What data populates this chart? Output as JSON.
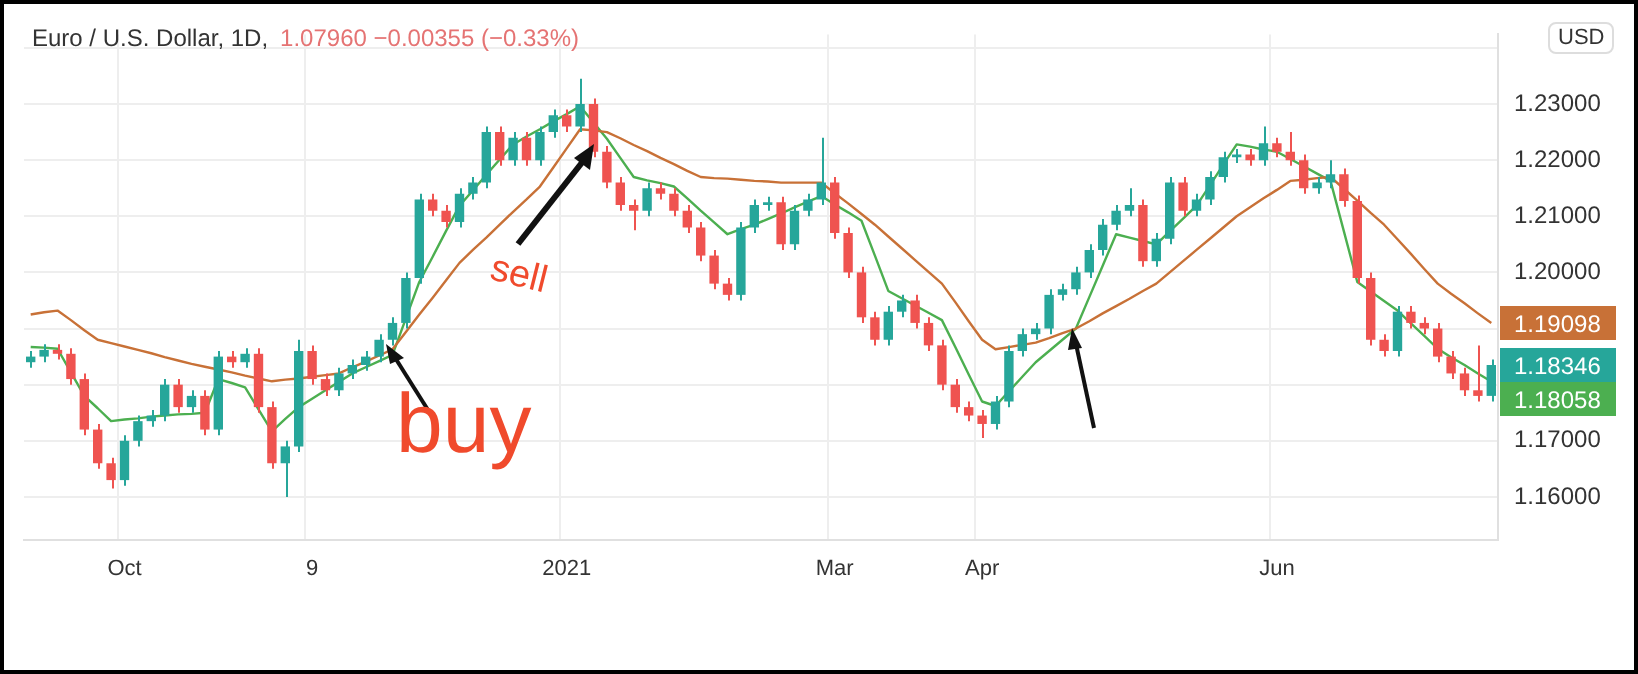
{
  "chart_data": {
    "type": "candlestick",
    "title": "Euro / U.S. Dollar, 1D,",
    "subtitle": "1.07960  −0.00355 (−0.33%)",
    "categories": [
      null,
      null,
      null,
      null,
      null,
      null,
      null,
      "Oct",
      null,
      null,
      null,
      null,
      null,
      null,
      null,
      null,
      null,
      null,
      null,
      null,
      null,
      "9",
      null,
      null,
      null,
      null,
      null,
      null,
      null,
      null,
      null,
      null,
      null,
      null,
      null,
      null,
      null,
      null,
      null,
      null,
      "2021",
      null,
      null,
      null,
      null,
      null,
      null,
      null,
      null,
      null,
      null,
      null,
      null,
      null,
      null,
      null,
      null,
      null,
      null,
      null,
      "Mar",
      null,
      null,
      null,
      null,
      null,
      null,
      null,
      null,
      null,
      null,
      "Apr",
      null,
      null,
      null,
      null,
      null,
      null,
      null,
      null,
      null,
      null,
      null,
      null,
      null,
      null,
      null,
      null,
      null,
      null,
      null,
      null,
      null,
      "Jun",
      null,
      null,
      null,
      null,
      null,
      null,
      null,
      null,
      null,
      null,
      null,
      null,
      null,
      null,
      null,
      null
    ],
    "ylim": [
      1.1524,
      1.2424
    ],
    "yticks": [
      {
        "value": 1.16,
        "label": "1.16000"
      },
      {
        "value": 1.17,
        "label": "1.17000"
      },
      {
        "value": 1.18,
        "label": null
      },
      {
        "value": 1.19,
        "label": null
      },
      {
        "value": 1.2,
        "label": "1.20000"
      },
      {
        "value": 1.21,
        "label": "1.21000"
      },
      {
        "value": 1.22,
        "label": "1.22000"
      },
      {
        "value": 1.23,
        "label": "1.23000"
      },
      {
        "value": 1.24,
        "label": null
      }
    ],
    "grid": true,
    "annotations": [
      "buy",
      "sell",
      "USD"
    ],
    "series": [
      {
        "ohlc": [
          [
            1.184,
            1.186,
            1.183,
            1.185
          ],
          [
            1.185,
            1.1872,
            1.184,
            1.1862
          ],
          [
            1.1862,
            1.1872,
            1.1845,
            1.1855
          ],
          [
            1.1855,
            1.1865,
            1.18,
            1.181
          ],
          [
            1.181,
            1.182,
            1.171,
            1.172
          ],
          [
            1.172,
            1.173,
            1.165,
            1.166
          ],
          [
            1.166,
            1.167,
            1.1615,
            1.163
          ],
          [
            1.163,
            1.171,
            1.162,
            1.17
          ],
          [
            1.17,
            1.1745,
            1.169,
            1.1735
          ],
          [
            1.1735,
            1.1755,
            1.1725,
            1.1745
          ],
          [
            1.1745,
            1.181,
            1.1735,
            1.18
          ],
          [
            1.18,
            1.181,
            1.175,
            1.176
          ],
          [
            1.176,
            1.179,
            1.175,
            1.178
          ],
          [
            1.178,
            1.179,
            1.171,
            1.172
          ],
          [
            1.172,
            1.186,
            1.171,
            1.185
          ],
          [
            1.185,
            1.186,
            1.183,
            1.184
          ],
          [
            1.184,
            1.1865,
            1.183,
            1.1855
          ],
          [
            1.1855,
            1.1865,
            1.175,
            1.176
          ],
          [
            1.176,
            1.177,
            1.165,
            1.166
          ],
          [
            1.166,
            1.17,
            1.16,
            1.169
          ],
          [
            1.169,
            1.188,
            1.168,
            1.186
          ],
          [
            1.186,
            1.187,
            1.18,
            1.181
          ],
          [
            1.181,
            1.182,
            1.178,
            1.179
          ],
          [
            1.179,
            1.183,
            1.178,
            1.182
          ],
          [
            1.182,
            1.1845,
            1.181,
            1.1835
          ],
          [
            1.1835,
            1.186,
            1.1825,
            1.185
          ],
          [
            1.185,
            1.189,
            1.184,
            1.188
          ],
          [
            1.188,
            1.192,
            1.187,
            1.191
          ],
          [
            1.191,
            1.2,
            1.19,
            1.199
          ],
          [
            1.199,
            1.214,
            1.198,
            1.213
          ],
          [
            1.213,
            1.214,
            1.21,
            1.211
          ],
          [
            1.211,
            1.212,
            1.208,
            1.209
          ],
          [
            1.209,
            1.215,
            1.208,
            1.214
          ],
          [
            1.214,
            1.217,
            1.213,
            1.216
          ],
          [
            1.216,
            1.226,
            1.215,
            1.225
          ],
          [
            1.225,
            1.226,
            1.219,
            1.22
          ],
          [
            1.22,
            1.225,
            1.219,
            1.224
          ],
          [
            1.224,
            1.225,
            1.219,
            1.22
          ],
          [
            1.22,
            1.226,
            1.219,
            1.225
          ],
          [
            1.225,
            1.229,
            1.224,
            1.228
          ],
          [
            1.228,
            1.229,
            1.225,
            1.226
          ],
          [
            1.226,
            1.2345,
            1.225,
            1.23
          ],
          [
            1.23,
            1.231,
            1.2205,
            1.2215
          ],
          [
            1.2215,
            1.2225,
            1.215,
            1.216
          ],
          [
            1.216,
            1.217,
            1.211,
            1.212
          ],
          [
            1.212,
            1.213,
            1.2075,
            1.211
          ],
          [
            1.211,
            1.216,
            1.21,
            1.215
          ],
          [
            1.215,
            1.216,
            1.213,
            1.214
          ],
          [
            1.214,
            1.215,
            1.21,
            1.211
          ],
          [
            1.211,
            1.212,
            1.207,
            1.208
          ],
          [
            1.208,
            1.209,
            1.202,
            1.203
          ],
          [
            1.203,
            1.204,
            1.197,
            1.198
          ],
          [
            1.198,
            1.199,
            1.195,
            1.196
          ],
          [
            1.196,
            1.209,
            1.195,
            1.208
          ],
          [
            1.208,
            1.213,
            1.207,
            1.212
          ],
          [
            1.212,
            1.2135,
            1.211,
            1.2125
          ],
          [
            1.2125,
            1.2135,
            1.204,
            1.205
          ],
          [
            1.205,
            1.212,
            1.204,
            1.211
          ],
          [
            1.211,
            1.214,
            1.21,
            1.213
          ],
          [
            1.213,
            1.224,
            1.212,
            1.216
          ],
          [
            1.216,
            1.217,
            1.206,
            1.207
          ],
          [
            1.207,
            1.208,
            1.199,
            1.2
          ],
          [
            1.2,
            1.201,
            1.191,
            1.192
          ],
          [
            1.192,
            1.193,
            1.187,
            1.188
          ],
          [
            1.188,
            1.194,
            1.187,
            1.193
          ],
          [
            1.193,
            1.196,
            1.192,
            1.195
          ],
          [
            1.195,
            1.196,
            1.19,
            1.191
          ],
          [
            1.191,
            1.192,
            1.186,
            1.187
          ],
          [
            1.187,
            1.188,
            1.179,
            1.18
          ],
          [
            1.18,
            1.181,
            1.175,
            1.176
          ],
          [
            1.176,
            1.177,
            1.1735,
            1.1745
          ],
          [
            1.1745,
            1.1755,
            1.1705,
            1.173
          ],
          [
            1.173,
            1.178,
            1.172,
            1.177
          ],
          [
            1.177,
            1.187,
            1.176,
            1.186
          ],
          [
            1.186,
            1.19,
            1.185,
            1.189
          ],
          [
            1.189,
            1.191,
            1.188,
            1.19
          ],
          [
            1.19,
            1.197,
            1.189,
            1.196
          ],
          [
            1.196,
            1.198,
            1.195,
            1.197
          ],
          [
            1.197,
            1.201,
            1.196,
            1.2
          ],
          [
            1.2,
            1.205,
            1.199,
            1.204
          ],
          [
            1.204,
            1.2095,
            1.203,
            1.2085
          ],
          [
            1.2085,
            1.212,
            1.2075,
            1.211
          ],
          [
            1.211,
            1.215,
            1.21,
            1.212
          ],
          [
            1.212,
            1.213,
            1.201,
            1.202
          ],
          [
            1.202,
            1.207,
            1.201,
            1.206
          ],
          [
            1.206,
            1.217,
            1.205,
            1.216
          ],
          [
            1.216,
            1.217,
            1.21,
            1.211
          ],
          [
            1.211,
            1.214,
            1.21,
            1.213
          ],
          [
            1.213,
            1.218,
            1.212,
            1.217
          ],
          [
            1.217,
            1.2215,
            1.216,
            1.2205
          ],
          [
            1.2205,
            1.222,
            1.2195,
            1.221
          ],
          [
            1.221,
            1.222,
            1.219,
            1.22
          ],
          [
            1.22,
            1.226,
            1.219,
            1.223
          ],
          [
            1.223,
            1.224,
            1.2205,
            1.2215
          ],
          [
            1.2215,
            1.225,
            1.219,
            1.22
          ],
          [
            1.22,
            1.221,
            1.214,
            1.215
          ],
          [
            1.215,
            1.217,
            1.214,
            1.216
          ],
          [
            1.216,
            1.22,
            1.215,
            1.2175
          ],
          [
            1.2175,
            1.2185,
            1.2117,
            1.2127
          ],
          [
            1.2127,
            1.2137,
            1.198,
            1.199
          ],
          [
            1.199,
            1.2,
            1.187,
            1.188
          ],
          [
            1.188,
            1.189,
            1.185,
            1.186
          ],
          [
            1.186,
            1.194,
            1.185,
            1.193
          ],
          [
            1.193,
            1.194,
            1.19,
            1.191
          ],
          [
            1.191,
            1.192,
            1.189,
            1.19
          ],
          [
            1.19,
            1.191,
            1.184,
            1.185
          ],
          [
            1.185,
            1.186,
            1.181,
            1.182
          ],
          [
            1.182,
            1.183,
            1.178,
            1.179
          ],
          [
            1.179,
            1.187,
            1.177,
            1.178
          ],
          [
            1.178,
            1.1845,
            1.177,
            1.1835
          ]
        ],
        "colors": [
          "#26a69a",
          "#26a69a",
          "#ef5350",
          "#ef5350",
          "#ef5350",
          "#ef5350",
          "#ef5350",
          "#26a69a",
          "#26a69a",
          "#26a69a",
          "#26a69a",
          "#ef5350",
          "#26a69a",
          "#ef5350",
          "#26a69a",
          "#ef5350",
          "#26a69a",
          "#ef5350",
          "#ef5350",
          "#26a69a",
          "#26a69a",
          "#ef5350",
          "#ef5350",
          "#26a69a",
          "#26a69a",
          "#26a69a",
          "#26a69a",
          "#26a69a",
          "#26a69a",
          "#26a69a",
          "#ef5350",
          "#ef5350",
          "#26a69a",
          "#26a69a",
          "#26a69a",
          "#ef5350",
          "#26a69a",
          "#ef5350",
          "#26a69a",
          "#26a69a",
          "#ef5350",
          "#26a69a",
          "#ef5350",
          "#ef5350",
          "#ef5350",
          "#ef5350",
          "#26a69a",
          "#ef5350",
          "#ef5350",
          "#ef5350",
          "#ef5350",
          "#ef5350",
          "#ef5350",
          "#26a69a",
          "#26a69a",
          "#26a69a",
          "#ef5350",
          "#26a69a",
          "#26a69a",
          "#26a69a",
          "#ef5350",
          "#ef5350",
          "#ef5350",
          "#ef5350",
          "#26a69a",
          "#26a69a",
          "#ef5350",
          "#ef5350",
          "#ef5350",
          "#ef5350",
          "#ef5350",
          "#ef5350",
          "#26a69a",
          "#26a69a",
          "#26a69a",
          "#26a69a",
          "#26a69a",
          "#26a69a",
          "#26a69a",
          "#26a69a",
          "#26a69a",
          "#26a69a",
          "#26a69a",
          "#ef5350",
          "#26a69a",
          "#26a69a",
          "#ef5350",
          "#26a69a",
          "#26a69a",
          "#26a69a",
          "#26a69a",
          "#ef5350",
          "#26a69a",
          "#ef5350",
          "#ef5350",
          "#ef5350",
          "#26a69a",
          "#26a69a",
          "#ef5350",
          "#ef5350",
          "#ef5350",
          "#ef5350",
          "#26a69a",
          "#ef5350",
          "#ef5350",
          "#ef5350",
          "#ef5350",
          "#ef5350",
          "#ef5350",
          "#26a69a"
        ],
        "value_labels": [
          null,
          null,
          null,
          null,
          null,
          null,
          null,
          null,
          null,
          null,
          null,
          null,
          null,
          null,
          null,
          null,
          null,
          null,
          null,
          null,
          null,
          null,
          null,
          null,
          null,
          null,
          null,
          null,
          null,
          null,
          null,
          null,
          null,
          null,
          null,
          null,
          null,
          null,
          null,
          null,
          null,
          null,
          null,
          null,
          null,
          null,
          null,
          null,
          null,
          null,
          null,
          null,
          null,
          null,
          null,
          null,
          null,
          null,
          null,
          null,
          null,
          null,
          null,
          null,
          null,
          null,
          null,
          null,
          null,
          null,
          null,
          null,
          null,
          null,
          null,
          null,
          null,
          null,
          null,
          null,
          null,
          null,
          null,
          null,
          null,
          null,
          null,
          null,
          null,
          null,
          null,
          null,
          null,
          null,
          null,
          null,
          null,
          null,
          null,
          null,
          null,
          null,
          null,
          null,
          null,
          null,
          null,
          null,
          null,
          "1.18346"
        ]
      },
      {
        "type": "line",
        "color": "#c87137",
        "values": [
          1.1925,
          1.1929,
          1.1932,
          1.1915,
          1.1897,
          1.188,
          1.1874,
          1.1868,
          1.1862,
          1.1856,
          1.1849,
          1.1843,
          1.1837,
          1.1832,
          1.1827,
          1.1822,
          1.1816,
          1.1811,
          1.1806,
          1.1809,
          1.1811,
          1.1814,
          1.1817,
          1.182,
          1.1831,
          1.1841,
          1.1852,
          1.1863,
          1.1894,
          1.1925,
          1.1955,
          1.1986,
          1.2017,
          1.204,
          1.2062,
          1.2085,
          1.2108,
          1.213,
          1.2153,
          1.2187,
          1.2221,
          1.2255,
          1.2253,
          1.225,
          1.2239,
          1.2227,
          1.2216,
          1.2204,
          1.2193,
          1.2181,
          1.217,
          1.2168,
          1.2167,
          1.2165,
          1.2163,
          1.2162,
          1.216,
          1.216,
          1.216,
          1.216,
          1.2141,
          1.2123,
          1.2104,
          1.2085,
          1.2064,
          1.2043,
          1.2022,
          1.2001,
          1.198,
          1.1947,
          1.1913,
          1.188,
          1.1863,
          1.1867,
          1.1871,
          1.1875,
          1.1883,
          1.1892,
          1.19,
          1.1913,
          1.1927,
          1.194,
          1.1953,
          1.1967,
          1.198,
          1.2,
          1.202,
          1.204,
          1.206,
          1.208,
          1.21,
          1.2116,
          1.2132,
          1.2147,
          1.2163,
          1.2165,
          1.2168,
          1.217,
          1.2149,
          1.2128,
          1.2106,
          1.2085,
          1.2059,
          1.2033,
          1.2006,
          1.198,
          1.1962,
          1.1945,
          1.1927,
          1.19098
        ],
        "value_labels": [
          null,
          null,
          null,
          null,
          null,
          null,
          null,
          null,
          null,
          null,
          null,
          null,
          null,
          null,
          null,
          null,
          null,
          null,
          null,
          null,
          null,
          null,
          null,
          null,
          null,
          null,
          null,
          null,
          null,
          null,
          null,
          null,
          null,
          null,
          null,
          null,
          null,
          null,
          null,
          null,
          null,
          null,
          null,
          null,
          null,
          null,
          null,
          null,
          null,
          null,
          null,
          null,
          null,
          null,
          null,
          null,
          null,
          null,
          null,
          null,
          null,
          null,
          null,
          null,
          null,
          null,
          null,
          null,
          null,
          null,
          null,
          null,
          null,
          null,
          null,
          null,
          null,
          null,
          null,
          null,
          null,
          null,
          null,
          null,
          null,
          null,
          null,
          null,
          null,
          null,
          null,
          null,
          null,
          null,
          null,
          null,
          null,
          null,
          null,
          null,
          null,
          null,
          null,
          null,
          null,
          null,
          null,
          null,
          null,
          "1.19098"
        ]
      },
      {
        "type": "line",
        "color": "#4caf50",
        "values": [
          1.1867,
          1.1866,
          1.1864,
          1.1822,
          1.178,
          1.1758,
          1.1735,
          1.1738,
          1.174,
          1.1743,
          1.1745,
          1.1747,
          1.1748,
          1.175,
          1.181,
          1.1803,
          1.1795,
          1.1756,
          1.1717,
          1.1739,
          1.176,
          1.1775,
          1.179,
          1.1805,
          1.182,
          1.1831,
          1.1842,
          1.1853,
          1.1918,
          1.1983,
          1.2028,
          1.2074,
          1.2119,
          1.2146,
          1.2174,
          1.2201,
          1.2228,
          1.2242,
          1.2255,
          1.2269,
          1.2282,
          1.2296,
          1.2267,
          1.2238,
          1.2204,
          1.217,
          1.2164,
          1.2159,
          1.2153,
          1.2132,
          1.211,
          1.2089,
          1.2068,
          1.2077,
          1.2085,
          1.2095,
          1.2105,
          1.2116,
          1.2126,
          1.2136,
          1.2121,
          1.2107,
          1.2092,
          1.203,
          1.1967,
          1.1954,
          1.1941,
          1.1928,
          1.1915,
          1.1867,
          1.1818,
          1.177,
          1.1762,
          1.1788,
          1.1814,
          1.184,
          1.186,
          1.188,
          1.19,
          1.1956,
          1.2012,
          1.2068,
          1.2062,
          1.2056,
          1.205,
          1.2073,
          1.2096,
          1.2119,
          1.2155,
          1.2192,
          1.2228,
          1.2224,
          1.2219,
          1.2215,
          1.2202,
          1.2189,
          1.2176,
          1.2163,
          1.2073,
          1.1983,
          1.1966,
          1.1949,
          1.1932,
          1.1909,
          1.1887,
          1.1864,
          1.1849,
          1.1835,
          1.182,
          1.18058
        ],
        "value_labels": [
          null,
          null,
          null,
          null,
          null,
          null,
          null,
          null,
          null,
          null,
          null,
          null,
          null,
          null,
          null,
          null,
          null,
          null,
          null,
          null,
          null,
          null,
          null,
          null,
          null,
          null,
          null,
          null,
          null,
          null,
          null,
          null,
          null,
          null,
          null,
          null,
          null,
          null,
          null,
          null,
          null,
          null,
          null,
          null,
          null,
          null,
          null,
          null,
          null,
          null,
          null,
          null,
          null,
          null,
          null,
          null,
          null,
          null,
          null,
          null,
          null,
          null,
          null,
          null,
          null,
          null,
          null,
          null,
          null,
          null,
          null,
          null,
          null,
          null,
          null,
          null,
          null,
          null,
          null,
          null,
          null,
          null,
          null,
          null,
          null,
          null,
          null,
          null,
          null,
          null,
          null,
          null,
          null,
          null,
          null,
          null,
          null,
          null,
          null,
          null,
          null,
          null,
          null,
          null,
          null,
          null,
          null,
          null,
          null,
          "1.18058"
        ]
      }
    ]
  }
}
